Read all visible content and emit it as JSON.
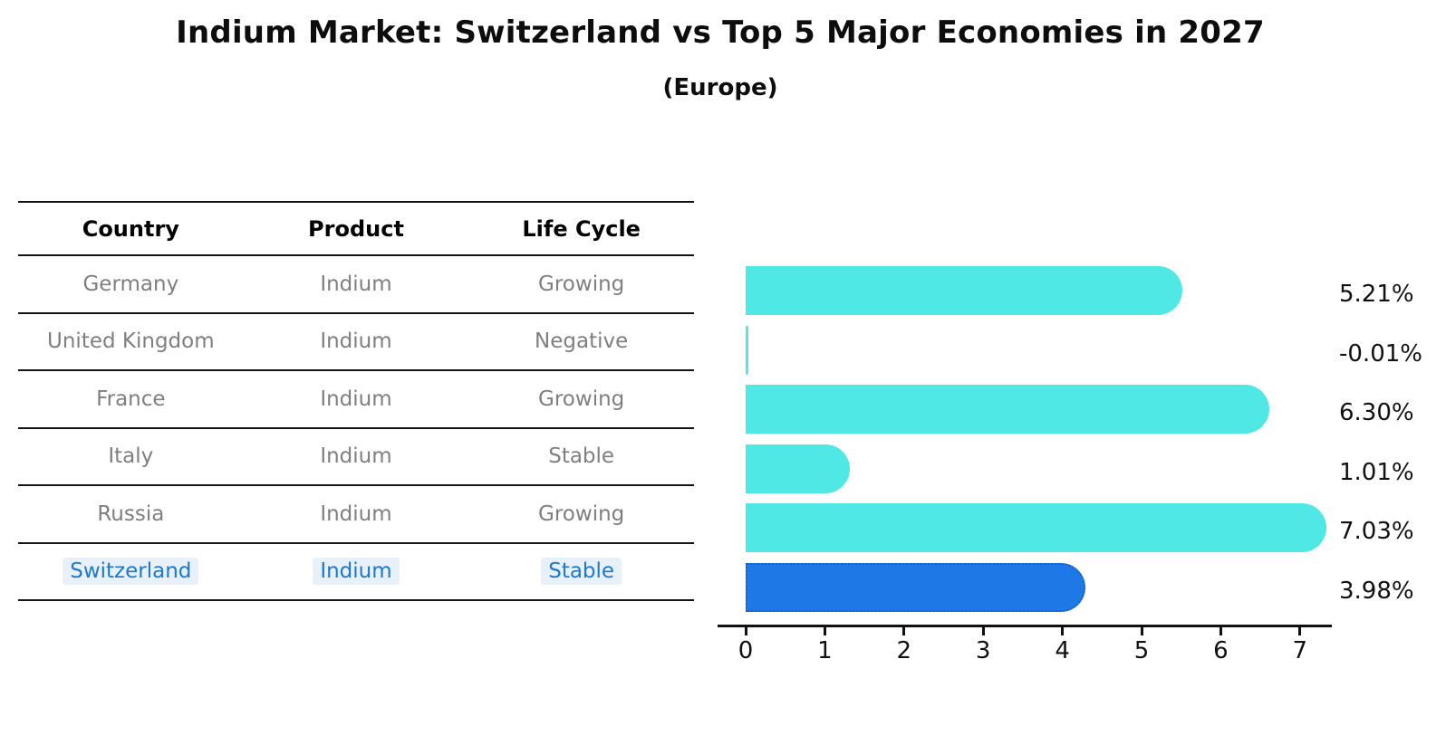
{
  "title": "Indium Market: Switzerland vs Top 5 Major Economies in 2027",
  "subtitle": "(Europe)",
  "table": {
    "columns": [
      "Country",
      "Product",
      "Life Cycle"
    ],
    "rows": [
      {
        "country": "Germany",
        "product": "Indium",
        "life_cycle": "Growing",
        "highlighted": false
      },
      {
        "country": "United Kingdom",
        "product": "Indium",
        "life_cycle": "Negative",
        "highlighted": false
      },
      {
        "country": "France",
        "product": "Indium",
        "life_cycle": "Growing",
        "highlighted": false
      },
      {
        "country": "Italy",
        "product": "Indium",
        "life_cycle": "Stable",
        "highlighted": false
      },
      {
        "country": "Russia",
        "product": "Indium",
        "life_cycle": "Growing",
        "highlighted": false
      },
      {
        "country": "Switzerland",
        "product": "Indium",
        "life_cycle": "Stable",
        "highlighted": true
      }
    ]
  },
  "chart_data": {
    "type": "bar",
    "orientation": "horizontal",
    "title": "Indium Market: Switzerland vs Top 5 Major Economies in 2027",
    "subtitle": "(Europe)",
    "categories": [
      "Germany",
      "United Kingdom",
      "France",
      "Italy",
      "Russia",
      "Switzerland"
    ],
    "values": [
      5.21,
      -0.01,
      6.3,
      1.01,
      7.03,
      3.98
    ],
    "value_labels": [
      "5.21%",
      "-0.01%",
      "6.30%",
      "1.01%",
      "7.03%",
      "3.98%"
    ],
    "x_ticks": [
      0,
      1,
      2,
      3,
      4,
      5,
      6,
      7
    ],
    "xlim": [
      0,
      7.4
    ],
    "xlabel": "",
    "ylabel": "",
    "grid": false,
    "legend": false,
    "highlight_index": 5
  },
  "colors": {
    "background": "#FFFFFF",
    "bar_default": "#4FE8E4",
    "bar_highlight": "#1E78E6",
    "bar_highlight_border": "#1260D0",
    "highlight_text": "#1F78C8",
    "highlight_text_bg": "rgba(31,120,200,0.10)",
    "row_text": "#7F7F7F",
    "header_text": "#000000",
    "axis": "#111111"
  }
}
